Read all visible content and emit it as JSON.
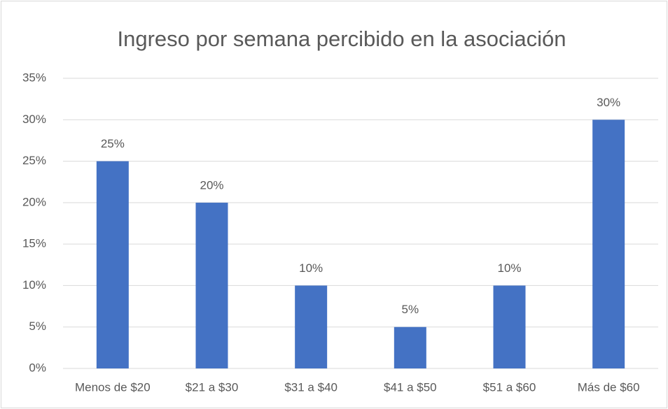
{
  "chart_data": {
    "type": "bar",
    "title": "Ingreso por semana percibido en la asociación",
    "categories": [
      "Menos de $20",
      "$21 a $30",
      "$31 a $40",
      "$41 a $50",
      "$51 a $60",
      "Más de $60"
    ],
    "values": [
      25,
      20,
      10,
      5,
      10,
      30
    ],
    "value_labels": [
      "25%",
      "20%",
      "10%",
      "5%",
      "10%",
      "30%"
    ],
    "color": "#4472c4",
    "ylim": [
      0,
      35
    ],
    "yticks": [
      {
        "value": 0,
        "label": "0%"
      },
      {
        "value": 5,
        "label": "5%"
      },
      {
        "value": 10,
        "label": "10%"
      },
      {
        "value": 15,
        "label": "15%"
      },
      {
        "value": 20,
        "label": "20%"
      },
      {
        "value": 25,
        "label": "25%"
      },
      {
        "value": 30,
        "label": "30%"
      },
      {
        "value": 35,
        "label": "35%"
      }
    ],
    "grid": true
  }
}
